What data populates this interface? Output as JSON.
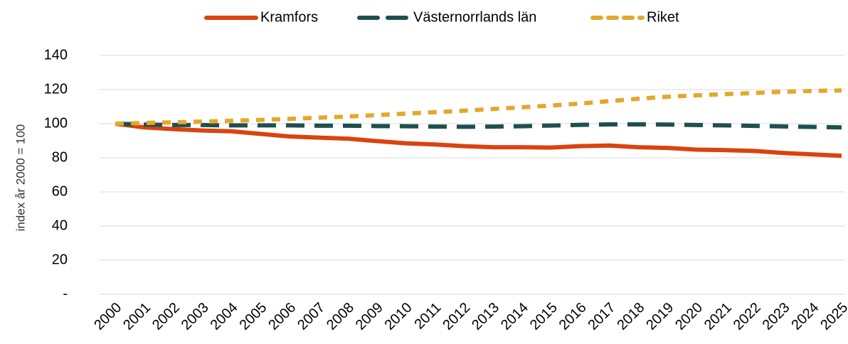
{
  "chart_data": {
    "type": "line",
    "y_label": "index år 2000 = 100",
    "categories": [
      "2000",
      "2001",
      "2002",
      "2003",
      "2004",
      "2005",
      "2006",
      "2007",
      "2008",
      "2009",
      "2010",
      "2011",
      "2012",
      "2013",
      "2014",
      "2015",
      "2016",
      "2017",
      "2018",
      "2019",
      "2020",
      "2021",
      "2022",
      "2023",
      "2024",
      "2025"
    ],
    "series": [
      {
        "name": "Kramfors",
        "color": "#d9430f",
        "dash": "solid",
        "values": [
          100,
          97.8,
          96.8,
          96,
          95.5,
          94,
          92.5,
          91.8,
          91.2,
          89.8,
          88.5,
          87.8,
          86.8,
          86.2,
          86.2,
          86,
          86.8,
          87.2,
          86.2,
          85.8,
          84.8,
          84.5,
          84,
          82.8,
          82,
          81.2
        ]
      },
      {
        "name": "Västernorrlands län",
        "color": "#1e5050",
        "dash": "long",
        "values": [
          100,
          99.5,
          99.2,
          99.2,
          99,
          99,
          99,
          98.8,
          98.8,
          98.6,
          98.5,
          98.3,
          98.2,
          98.3,
          98.5,
          98.9,
          99.3,
          99.6,
          99.6,
          99.5,
          99.2,
          99,
          98.7,
          98.4,
          98.1,
          97.8
        ]
      },
      {
        "name": "Riket",
        "color": "#e3a82b",
        "dash": "short",
        "values": [
          100,
          100.4,
          100.8,
          101.2,
          101.7,
          102.2,
          102.8,
          103.5,
          104.2,
          105,
          105.9,
          106.7,
          107.6,
          108.6,
          109.6,
          110.6,
          111.8,
          113.2,
          114.6,
          115.8,
          116.6,
          117.3,
          118,
          118.7,
          119.2,
          119.5
        ]
      }
    ],
    "ylim": [
      0,
      140
    ],
    "yticks": [
      {
        "value": 0,
        "label": "-"
      },
      20,
      40,
      60,
      80,
      100,
      120,
      140
    ],
    "grid": true,
    "legend": "top"
  }
}
